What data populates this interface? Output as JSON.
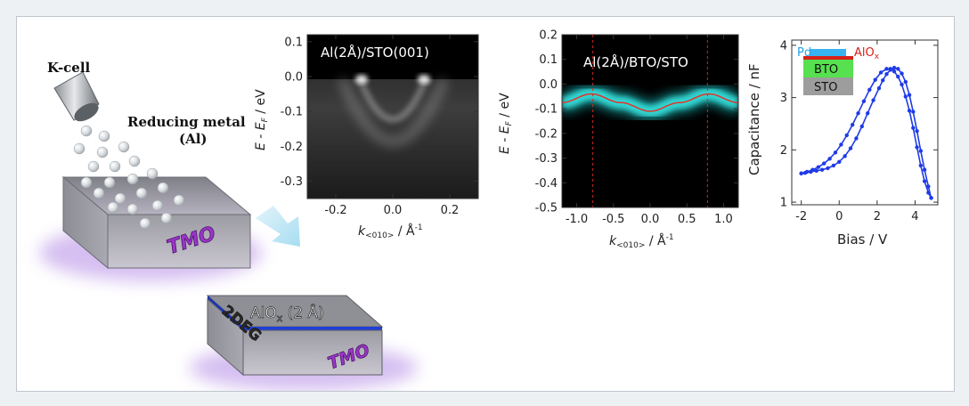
{
  "schematic": {
    "kcell_label": "K-cell",
    "reducing_label_line1": "Reducing metal",
    "reducing_label_line2": "(Al)",
    "tmo_label": "TMO",
    "tmo_label_2": "TMO",
    "alox_label": "AlO",
    "alox_sub": "x",
    "alox_thickness": " (2 Å)",
    "twodeg_label": "2DEG",
    "colors": {
      "slab_top": "#8e8e95",
      "slab_front": "#a7a7ae",
      "glow": "#b48ae6",
      "tmo_text": "#9b35c9",
      "twodeg_layer": "#1e3fd8",
      "arrow": "#bfe6f5"
    }
  },
  "arpes_panel_1": {
    "title": "Al(2Å)/STO(001)",
    "y_axis_label": "E - E",
    "y_axis_sub": "F",
    "y_axis_unit": " / eV",
    "x_axis_label": "k",
    "x_axis_sub": "<010>",
    "x_axis_unit": " / Å",
    "x_axis_sup": "-1",
    "y_ticks": [
      "0.1",
      "0.0",
      "-0.1",
      "-0.2",
      "-0.3"
    ],
    "x_ticks": [
      "-0.2",
      "0.0",
      "0.2"
    ]
  },
  "arpes_panel_2": {
    "title": "Al(2Å)/BTO/STO",
    "y_axis_label": "E - E",
    "y_axis_sub": "F",
    "y_axis_unit": " / eV",
    "x_axis_label": "k",
    "x_axis_sub": "<010>",
    "x_axis_unit": " / Å",
    "x_axis_sup": "-1",
    "y_ticks": [
      "0.2",
      "0.1",
      "0.0",
      "-0.1",
      "-0.2",
      "-0.3",
      "-0.4",
      "-0.5"
    ],
    "x_ticks": [
      "-1.0",
      "-0.5",
      "0.0",
      "0.5",
      "1.0"
    ]
  },
  "cv_panel": {
    "y_axis_label": "Capacitance / nF",
    "x_axis_label": "Bias / V",
    "y_ticks": [
      "1",
      "2",
      "3",
      "4"
    ],
    "x_ticks": [
      "-2",
      "0",
      "2",
      "4"
    ],
    "inset": {
      "pd": "Pd",
      "alox": "AlO",
      "alox_sub": "x",
      "bto": "BTO",
      "sto": "STO"
    },
    "colors": {
      "line": "#1f3be6",
      "pd": "#36b3f0",
      "alox": "#d8201a",
      "bto": "#57e04f",
      "sto": "#9d9d9d"
    }
  },
  "chart_data": [
    {
      "type": "heatmap",
      "title": "Al(2Å)/STO(001)",
      "xlim": [
        -0.3,
        0.3
      ],
      "ylim": [
        -0.35,
        0.12
      ],
      "y_ticks": [
        0.1,
        0.0,
        -0.1,
        -0.2,
        -0.3
      ],
      "x_ticks": [
        -0.2,
        0.0,
        0.2
      ]
    },
    {
      "type": "heatmap",
      "title": "Al(2Å)/BTO/STO",
      "xlim": [
        -1.2,
        1.2
      ],
      "ylim": [
        -0.5,
        0.2
      ],
      "y_ticks": [
        0.2,
        0.1,
        0.0,
        -0.1,
        -0.2,
        -0.3,
        -0.4,
        -0.5
      ],
      "x_ticks": [
        -1.0,
        -0.5,
        0.0,
        0.5,
        1.0
      ],
      "band_markers_k": [
        -0.78,
        0.78
      ],
      "band_curve": {
        "x": [
          -1.2,
          -0.8,
          -0.4,
          0.0,
          0.4,
          0.8,
          1.2
        ],
        "y": [
          -0.075,
          -0.04,
          -0.075,
          -0.11,
          -0.075,
          -0.04,
          -0.075
        ]
      }
    },
    {
      "type": "line",
      "xlim": [
        -2.5,
        5.2
      ],
      "ylim": [
        0.95,
        4.1
      ],
      "x_ticks": [
        -2,
        0,
        2,
        4
      ],
      "y_ticks": [
        1,
        2,
        3,
        4
      ],
      "series": [
        {
          "x": [
            -2.0,
            -1.7,
            -1.4,
            -1.1,
            -0.8,
            -0.5,
            -0.2,
            0.1,
            0.4,
            0.7,
            1.0,
            1.3,
            1.6,
            1.9,
            2.2,
            2.5,
            2.7,
            2.9,
            3.1,
            3.3,
            3.5,
            3.7,
            3.9,
            4.1,
            4.3,
            4.5,
            4.7,
            4.85
          ],
          "y": [
            1.55,
            1.58,
            1.62,
            1.67,
            1.74,
            1.83,
            1.95,
            2.1,
            2.28,
            2.48,
            2.7,
            2.93,
            3.15,
            3.34,
            3.48,
            3.55,
            3.55,
            3.5,
            3.4,
            3.25,
            3.02,
            2.75,
            2.42,
            2.05,
            1.7,
            1.4,
            1.18,
            1.08
          ]
        },
        {
          "x": [
            4.85,
            4.7,
            4.5,
            4.3,
            4.1,
            3.9,
            3.7,
            3.5,
            3.3,
            3.1,
            2.9,
            2.7,
            2.5,
            2.3,
            2.1,
            1.8,
            1.5,
            1.2,
            0.9,
            0.6,
            0.3,
            0.0,
            -0.3,
            -0.6,
            -0.9,
            -1.2,
            -1.5,
            -1.8,
            -2.0
          ],
          "y": [
            1.08,
            1.3,
            1.62,
            1.98,
            2.36,
            2.73,
            3.05,
            3.3,
            3.46,
            3.55,
            3.57,
            3.53,
            3.45,
            3.33,
            3.18,
            2.95,
            2.7,
            2.45,
            2.22,
            2.03,
            1.88,
            1.77,
            1.7,
            1.65,
            1.62,
            1.6,
            1.58,
            1.56,
            1.55
          ]
        }
      ]
    }
  ]
}
